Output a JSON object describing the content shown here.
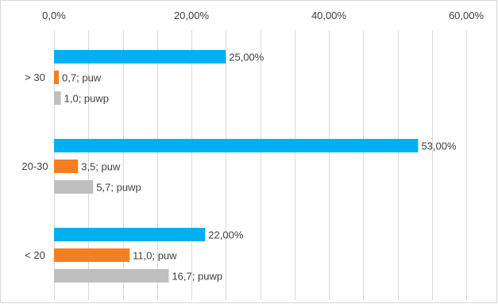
{
  "chart_data": {
    "type": "bar",
    "orientation": "horizontal",
    "x_axis_position": "top",
    "grid": true,
    "xlim": [
      0,
      60
    ],
    "x_ticks": [
      0,
      20,
      40,
      60
    ],
    "x_tick_labels": [
      "0,0%",
      "20,00%",
      "40,00%",
      "60,00%"
    ],
    "categories": [
      "> 30",
      "20-30",
      "< 20"
    ],
    "series": [
      {
        "color": "#00B0F0",
        "values": [
          25.0,
          53.0,
          22.0
        ],
        "labels": [
          "25,00%",
          "53,00%",
          "22,00%"
        ]
      },
      {
        "color": "#F47E20",
        "values": [
          0.7,
          3.5,
          11.0
        ],
        "labels": [
          "0,7; puw",
          "3,5; puw",
          "11,0; puw"
        ]
      },
      {
        "color": "#BFBFBF",
        "values": [
          1.0,
          5.7,
          16.7
        ],
        "labels": [
          "1,0; puwp",
          "5,7; puwp",
          "16,7; puwp"
        ]
      }
    ]
  },
  "colors": {
    "gridline": "#D9D9D9",
    "border": "#D9D9D9",
    "text": "#404040"
  }
}
